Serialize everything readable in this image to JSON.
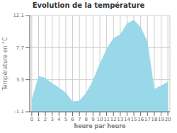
{
  "chart_data": {
    "type": "area",
    "title": "Evolution de la température",
    "xlabel": "heure par heure",
    "ylabel": "Température en °C",
    "x": [
      0,
      1,
      2,
      3,
      4,
      5,
      6,
      7,
      8,
      9,
      10,
      11,
      12,
      13,
      14,
      15,
      16,
      17,
      18,
      19,
      20
    ],
    "values": [
      0.5,
      3.8,
      3.5,
      2.8,
      2.2,
      1.5,
      0.3,
      0.4,
      1.5,
      3.2,
      5.5,
      7.5,
      9.0,
      9.5,
      11.0,
      11.5,
      10.5,
      8.5,
      2.0,
      2.5,
      3.0
    ],
    "xlim": [
      -0.3,
      20.3
    ],
    "xticks": [
      0,
      1,
      2,
      3,
      4,
      5,
      6,
      7,
      8,
      9,
      10,
      11,
      12,
      13,
      14,
      15,
      16,
      17,
      18,
      19,
      20
    ],
    "ylim": [
      -1.1,
      12.1
    ],
    "yticks": [
      -1.1,
      3.3,
      7.7,
      12.1
    ],
    "grid": true,
    "color": "#99d8e8",
    "line_style": "dotted"
  }
}
